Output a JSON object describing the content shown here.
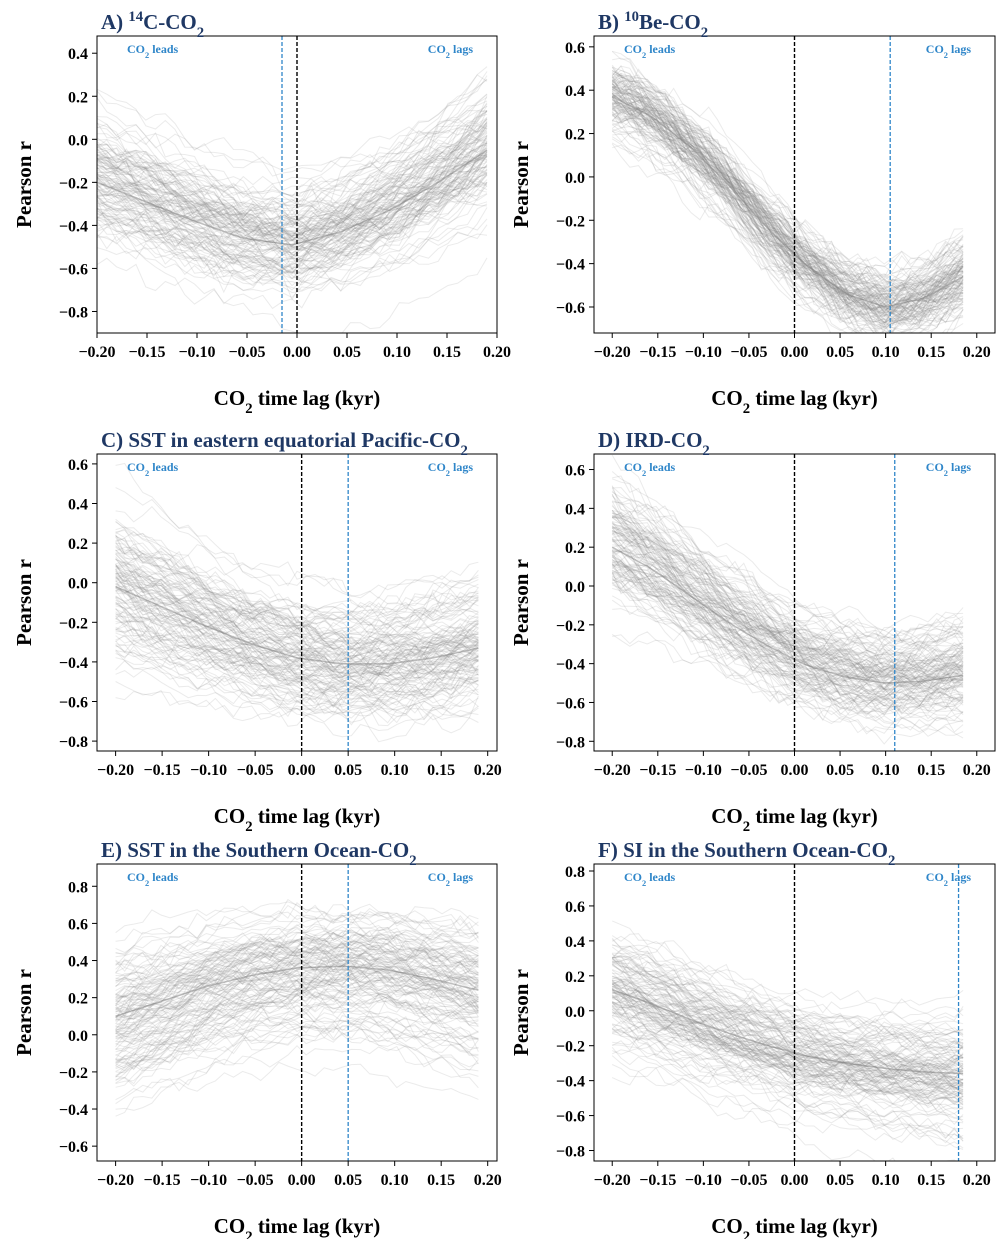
{
  "figure": {
    "xlabel_text": "CO",
    "xlabel_sub": "2",
    "xlabel_after": " time lag (kyr)",
    "ylabel": "Pearson r",
    "lead_text": "CO",
    "lead_sub": "2",
    "lead_after": " leads",
    "lag_text": "CO",
    "lag_sub": "2",
    "lag_after": " lags",
    "colors": {
      "curves": "#808080",
      "zero_line": "#000000",
      "lag_line": "#2f86c9",
      "title": "#1f3864",
      "annotation": "#2f86c9"
    }
  },
  "chart_data": [
    {
      "type": "line",
      "panel": "A",
      "title_parts": [
        [
          "A) ",
          "n"
        ],
        [
          "14",
          "sup"
        ],
        [
          "C-CO",
          "n"
        ],
        [
          "2",
          "sub"
        ]
      ],
      "xlabel": "CO2 time lag (kyr)",
      "ylabel": "Pearson r",
      "xlim": [
        -0.2,
        0.2
      ],
      "ylim": [
        -0.9,
        0.48
      ],
      "xticks": [
        -0.2,
        -0.15,
        -0.1,
        -0.05,
        0.0,
        0.05,
        0.1,
        0.15,
        0.2
      ],
      "xtick_labels": [
        "−0.20",
        "−0.15",
        "−0.10",
        "−0.05",
        "0.00",
        "0.05",
        "0.10",
        "0.15",
        "0.20"
      ],
      "yticks": [
        -0.8,
        -0.6,
        -0.4,
        -0.2,
        0.0,
        0.2,
        0.4
      ],
      "ytick_labels": [
        "−0.8",
        "−0.6",
        "−0.4",
        "−0.2",
        "0.0",
        "0.2",
        "0.4"
      ],
      "series": [
        {
          "values": [
            -0.2,
            -0.29,
            -0.38,
            -0.46,
            -0.49,
            -0.43,
            -0.33,
            -0.2,
            -0.05
          ]
        }
      ],
      "spread": 0.17,
      "zero_lag": 0.0,
      "best_lag": -0.015
    },
    {
      "type": "line",
      "panel": "B",
      "title_parts": [
        [
          "B) ",
          "n"
        ],
        [
          "10",
          "sup"
        ],
        [
          "Be-CO",
          "n"
        ],
        [
          "2",
          "sub"
        ]
      ],
      "xlabel": "CO2 time lag (kyr)",
      "ylabel": "Pearson r",
      "xlim": [
        -0.22,
        0.22
      ],
      "ylim": [
        -0.72,
        0.65
      ],
      "xticks": [
        -0.2,
        -0.15,
        -0.1,
        -0.05,
        0.0,
        0.05,
        0.1,
        0.15,
        0.2
      ],
      "xtick_labels": [
        "−0.20",
        "−0.15",
        "−0.10",
        "−0.05",
        "0.00",
        "0.05",
        "0.10",
        "0.15",
        "0.20"
      ],
      "yticks": [
        -0.6,
        -0.4,
        -0.2,
        0.0,
        0.2,
        0.4,
        0.6
      ],
      "ytick_labels": [
        "−0.6",
        "−0.4",
        "−0.2",
        "0.0",
        "0.2",
        "0.4",
        "0.6"
      ],
      "series": [
        {
          "values": [
            0.37,
            0.28,
            0.14,
            -0.04,
            -0.24,
            -0.41,
            -0.54,
            -0.6,
            -0.56,
            -0.46
          ]
        }
      ],
      "spread": 0.1,
      "x_end": 0.185,
      "zero_lag": 0.0,
      "best_lag": 0.105
    },
    {
      "type": "line",
      "panel": "C",
      "title_parts": [
        [
          "C) SST in eastern equatorial Pacific-CO",
          "n"
        ],
        [
          "2",
          "sub"
        ]
      ],
      "xlabel": "CO2 time lag (kyr)",
      "ylabel": "Pearson r",
      "xlim": [
        -0.22,
        0.21
      ],
      "ylim": [
        -0.85,
        0.65
      ],
      "xticks": [
        -0.2,
        -0.15,
        -0.1,
        -0.05,
        0.0,
        0.05,
        0.1,
        0.15,
        0.2
      ],
      "xtick_labels": [
        "−0.20",
        "−0.15",
        "−0.10",
        "−0.05",
        "0.00",
        "0.05",
        "0.10",
        "0.15",
        "0.20"
      ],
      "yticks": [
        -0.8,
        -0.6,
        -0.4,
        -0.2,
        0.0,
        0.2,
        0.4,
        0.6
      ],
      "ytick_labels": [
        "−0.8",
        "−0.6",
        "−0.4",
        "−0.2",
        "0.0",
        "0.2",
        "0.4",
        "0.6"
      ],
      "series": [
        {
          "values": [
            -0.02,
            -0.12,
            -0.22,
            -0.31,
            -0.38,
            -0.41,
            -0.41,
            -0.38,
            -0.33
          ]
        }
      ],
      "spread": 0.2,
      "x_end": 0.19,
      "zero_lag": 0.0,
      "best_lag": 0.05
    },
    {
      "type": "line",
      "panel": "D",
      "title_parts": [
        [
          "D) IRD-CO",
          "n"
        ],
        [
          "2",
          "sub"
        ]
      ],
      "xlabel": "CO2 time lag (kyr)",
      "ylabel": "Pearson r",
      "xlim": [
        -0.22,
        0.22
      ],
      "ylim": [
        -0.85,
        0.68
      ],
      "xticks": [
        -0.2,
        -0.15,
        -0.1,
        -0.05,
        0.0,
        0.05,
        0.1,
        0.15,
        0.2
      ],
      "xtick_labels": [
        "−0.20",
        "−0.15",
        "−0.10",
        "−0.05",
        "0.00",
        "0.05",
        "0.10",
        "0.15",
        "0.20"
      ],
      "yticks": [
        -0.8,
        -0.6,
        -0.4,
        -0.2,
        0.0,
        0.2,
        0.4,
        0.6
      ],
      "ytick_labels": [
        "−0.8",
        "−0.6",
        "−0.4",
        "−0.2",
        "0.0",
        "0.2",
        "0.4",
        "0.6"
      ],
      "series": [
        {
          "values": [
            0.2,
            0.09,
            -0.05,
            -0.19,
            -0.31,
            -0.41,
            -0.47,
            -0.5,
            -0.49,
            -0.46
          ]
        }
      ],
      "spread": 0.16,
      "x_end": 0.185,
      "zero_lag": 0.0,
      "best_lag": 0.11
    },
    {
      "type": "line",
      "panel": "E",
      "title_parts": [
        [
          "E) SST  in the Southern Ocean-CO",
          "n"
        ],
        [
          "2",
          "sub"
        ]
      ],
      "xlabel": "CO2 time lag (kyr)",
      "ylabel": "Pearson r",
      "xlim": [
        -0.22,
        0.21
      ],
      "ylim": [
        -0.68,
        0.92
      ],
      "xticks": [
        -0.2,
        -0.15,
        -0.1,
        -0.05,
        0.0,
        0.05,
        0.1,
        0.15,
        0.2
      ],
      "xtick_labels": [
        "−0.20",
        "−0.15",
        "−0.10",
        "−0.05",
        "0.00",
        "0.05",
        "0.10",
        "0.15",
        "0.20"
      ],
      "yticks": [
        -0.6,
        -0.4,
        -0.2,
        0.0,
        0.2,
        0.4,
        0.6,
        0.8
      ],
      "ytick_labels": [
        "−0.6",
        "−0.4",
        "−0.2",
        "0.0",
        "0.2",
        "0.4",
        "0.6",
        "0.8"
      ],
      "series": [
        {
          "values": [
            0.1,
            0.18,
            0.26,
            0.32,
            0.36,
            0.37,
            0.35,
            0.3,
            0.24
          ]
        }
      ],
      "spread": 0.2,
      "x_end": 0.19,
      "zero_lag": 0.0,
      "best_lag": 0.05
    },
    {
      "type": "line",
      "panel": "F",
      "title_parts": [
        [
          "F) SI in the Southern Ocean-CO",
          "n"
        ],
        [
          "2",
          "sub"
        ]
      ],
      "xlabel": "CO2 time lag (kyr)",
      "ylabel": "Pearson r",
      "xlim": [
        -0.22,
        0.22
      ],
      "ylim": [
        -0.86,
        0.84
      ],
      "xticks": [
        -0.2,
        -0.15,
        -0.1,
        -0.05,
        0.0,
        0.05,
        0.1,
        0.15,
        0.2
      ],
      "xtick_labels": [
        "−0.20",
        "−0.15",
        "−0.10",
        "−0.05",
        "0.00",
        "0.05",
        "0.10",
        "0.15",
        "0.20"
      ],
      "yticks": [
        -0.8,
        -0.6,
        -0.4,
        -0.2,
        0.0,
        0.2,
        0.4,
        0.6,
        0.8
      ],
      "ytick_labels": [
        "−0.8",
        "−0.6",
        "−0.4",
        "−0.2",
        "0.0",
        "0.2",
        "0.4",
        "0.6",
        "0.8"
      ],
      "series": [
        {
          "values": [
            0.12,
            0.04,
            -0.05,
            -0.13,
            -0.2,
            -0.26,
            -0.3,
            -0.33,
            -0.35,
            -0.36
          ]
        }
      ],
      "spread": 0.2,
      "x_end": 0.185,
      "zero_lag": 0.0,
      "best_lag": 0.18
    }
  ]
}
